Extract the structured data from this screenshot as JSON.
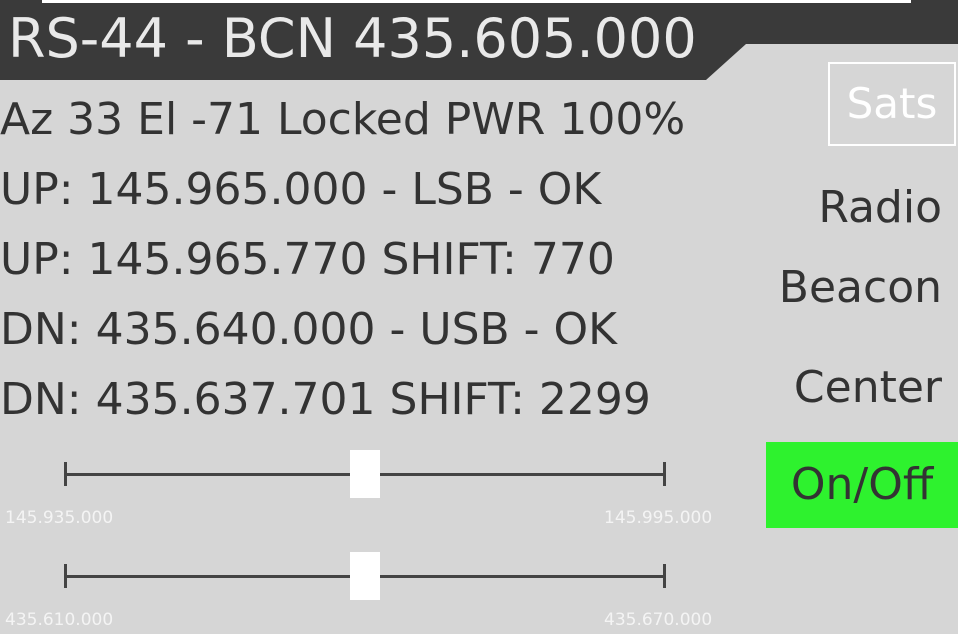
{
  "header": {
    "title": "RS-44 - BCN 435.605.000"
  },
  "status": {
    "line1": "Az 33 El -71 Locked PWR 100%",
    "line2": "UP: 145.965.000 - LSB - OK",
    "line3": "UP: 145.965.770 SHIFT: 770",
    "line4": "DN: 435.640.000 - USB - OK",
    "line5": "DN: 435.637.701 SHIFT: 2299"
  },
  "menu": {
    "sats": "Sats",
    "radio": "Radio",
    "beacon": "Beacon",
    "center": "Center",
    "onoff": "On/Off"
  },
  "sliders": [
    {
      "min_label": "145.935.000",
      "max_label": "145.995.000",
      "value_fraction": 0.5
    },
    {
      "min_label": "435.610.000",
      "max_label": "435.670.000",
      "value_fraction": 0.5
    }
  ],
  "colors": {
    "header_bg": "#3a3a3a",
    "panel_bg": "#d6d6d6",
    "onoff_bg": "#2ef22e",
    "text": "#333333"
  }
}
